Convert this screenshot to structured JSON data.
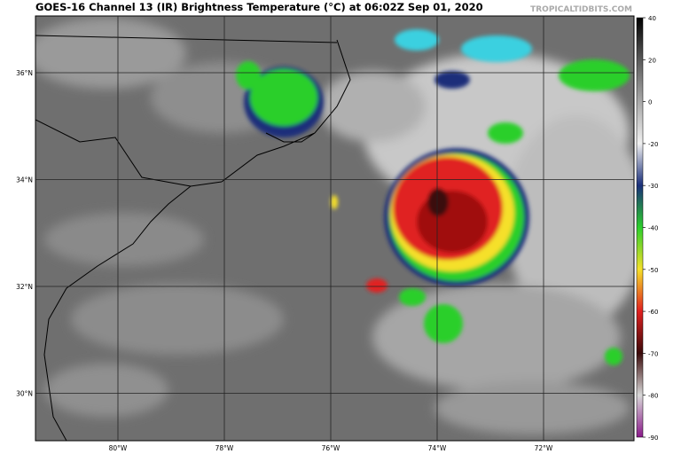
{
  "header": {
    "title": "GOES-16 Channel 13 (IR) Brightness Temperature (°C) at 06:02Z Sep 01, 2020",
    "watermark": "TROPICALTIDBITS.COM"
  },
  "map": {
    "latitude_labels": [
      "36°N",
      "34°N",
      "32°N",
      "30°N"
    ],
    "longitude_labels": [
      "80°W",
      "78°W",
      "76°W",
      "74°W",
      "72°W"
    ]
  },
  "colorbar": {
    "ticks": [
      40,
      20,
      0,
      -20,
      -30,
      -40,
      -50,
      -60,
      -70,
      -80,
      -90
    ],
    "colors": [
      "#000000",
      "#5a5a5a",
      "#a8a8a8",
      "#f0f0f0",
      "#1a2f7a",
      "#2ccf2c",
      "#f5e02a",
      "#e02020",
      "#3a0a0a",
      "#d8d8d8",
      "#8a1a8a"
    ]
  }
}
